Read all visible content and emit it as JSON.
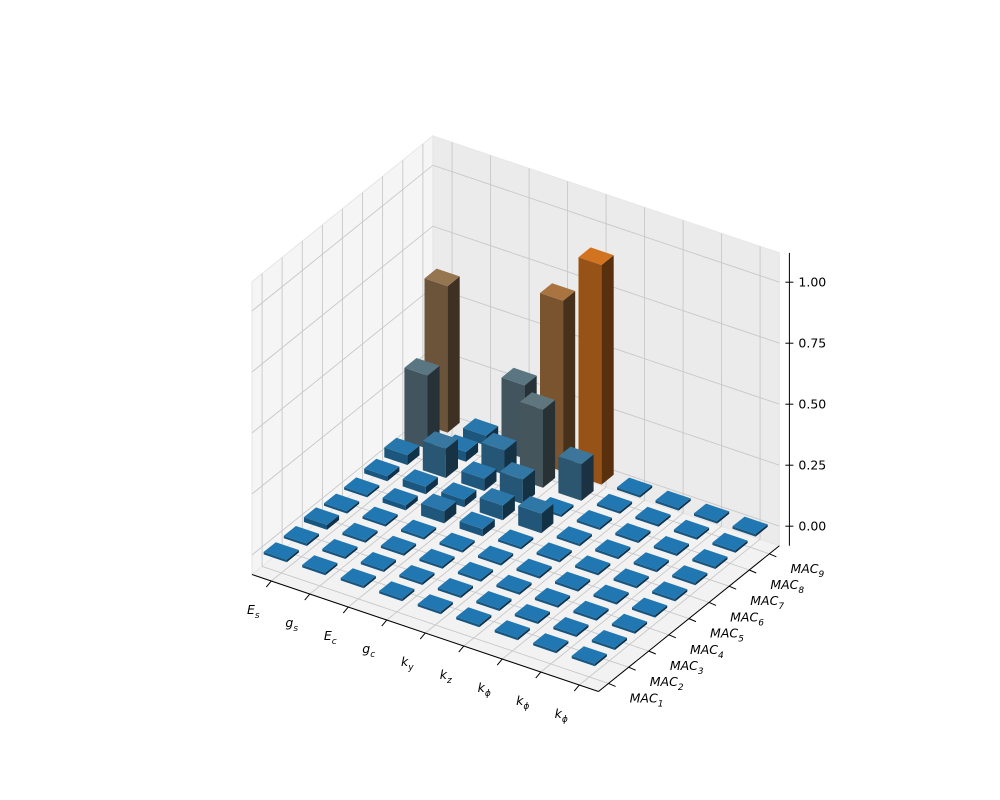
{
  "chart_data": {
    "type": "bar3d",
    "x_categories": [
      {
        "base": "E",
        "sub": "s"
      },
      {
        "base": "g",
        "sub": "s"
      },
      {
        "base": "E",
        "sub": "c"
      },
      {
        "base": "g",
        "sub": "c"
      },
      {
        "base": "k",
        "sub": "y"
      },
      {
        "base": "k",
        "sub": "z"
      },
      {
        "base": "k",
        "sub": "ϕ"
      },
      {
        "base": "k",
        "sub": "ϕ"
      },
      {
        "base": "k",
        "sub": "ϕ"
      }
    ],
    "y_categories": [
      {
        "base": "MAC",
        "sub": "1"
      },
      {
        "base": "MAC",
        "sub": "2"
      },
      {
        "base": "MAC",
        "sub": "3"
      },
      {
        "base": "MAC",
        "sub": "4"
      },
      {
        "base": "MAC",
        "sub": "5"
      },
      {
        "base": "MAC",
        "sub": "6"
      },
      {
        "base": "MAC",
        "sub": "7"
      },
      {
        "base": "MAC",
        "sub": "8"
      },
      {
        "base": "MAC",
        "sub": "9"
      }
    ],
    "z_ticks": [
      "0.00",
      "0.25",
      "0.50",
      "0.75",
      "1.00"
    ],
    "zlim": [
      0,
      1.0
    ],
    "grid": true,
    "colormap": "blue-to-orange (by height)",
    "values": [
      [
        0.01,
        0.01,
        0.01,
        0.01,
        0.01,
        0.01,
        0.01,
        0.01,
        0.01
      ],
      [
        0.01,
        0.01,
        0.01,
        0.01,
        0.01,
        0.01,
        0.01,
        0.01,
        0.01
      ],
      [
        0.02,
        0.01,
        0.01,
        0.01,
        0.01,
        0.01,
        0.01,
        0.01,
        0.01
      ],
      [
        0.01,
        0.01,
        0.01,
        0.01,
        0.01,
        0.01,
        0.01,
        0.01,
        0.01
      ],
      [
        0.01,
        0.02,
        0.05,
        0.03,
        0.01,
        0.01,
        0.01,
        0.01,
        0.01
      ],
      [
        0.02,
        0.03,
        0.03,
        0.06,
        0.08,
        0.01,
        0.01,
        0.01,
        0.01
      ],
      [
        0.04,
        0.12,
        0.05,
        0.1,
        0.01,
        0.01,
        0.01,
        0.01,
        0.01
      ],
      [
        0.3,
        0.04,
        0.1,
        0.32,
        0.15,
        0.01,
        0.01,
        0.01,
        0.01
      ],
      [
        0.6,
        0.04,
        0.3,
        0.7,
        0.9,
        0.01,
        0.01,
        0.01,
        0.01
      ]
    ]
  }
}
